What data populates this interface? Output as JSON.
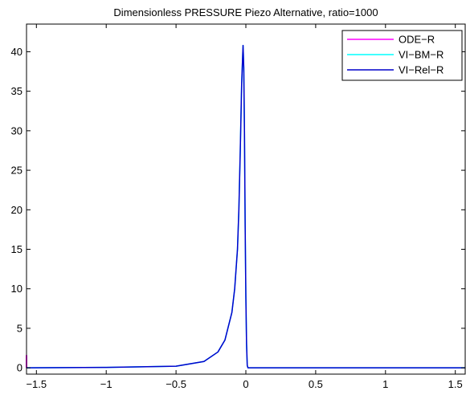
{
  "chart_data": {
    "type": "line",
    "title": "Dimensionless PRESSURE Piezo Alternative, ratio=1000",
    "xlabel": "",
    "ylabel": "",
    "xlim": [
      -1.5708,
      1.5708
    ],
    "ylim": [
      -0.8,
      43.5
    ],
    "xticks": [
      -1.5,
      -1,
      -0.5,
      0,
      0.5,
      1,
      1.5
    ],
    "xtick_labels": [
      "−1.5",
      "−1",
      "−0.5",
      "0",
      "0.5",
      "1",
      "1.5"
    ],
    "yticks": [
      0,
      5,
      10,
      15,
      20,
      25,
      30,
      35,
      40
    ],
    "ytick_labels": [
      "0",
      "5",
      "10",
      "15",
      "20",
      "25",
      "30",
      "35",
      "40"
    ],
    "grid": false,
    "legend_position": "top-right",
    "series": [
      {
        "name": "ODE−R",
        "color": "#ff00ff",
        "x": [
          -1.5708,
          -1.5708
        ],
        "y": [
          0.0,
          1.6
        ]
      },
      {
        "name": "VI−BM−R",
        "color": "#00ffff",
        "x": [
          -1.5708,
          -1.0,
          -0.5,
          -0.3,
          -0.2,
          -0.15,
          -0.1,
          -0.08,
          -0.06,
          -0.05,
          -0.04,
          -0.03,
          -0.02,
          -0.015,
          -0.01,
          -0.005,
          0.0,
          0.005,
          0.01,
          0.015,
          0.5,
          1.0,
          1.5708
        ],
        "y": [
          0.0,
          0.05,
          0.2,
          0.8,
          2.0,
          3.5,
          7.0,
          10.0,
          15.0,
          20.0,
          27.5,
          36.0,
          40.8,
          38.0,
          30.0,
          18.0,
          9.0,
          3.0,
          0.3,
          0.0,
          0.0,
          0.0,
          0.0
        ]
      },
      {
        "name": "VI−Rel−R",
        "color": "#0000cc",
        "x": [
          -1.5708,
          -1.0,
          -0.5,
          -0.3,
          -0.2,
          -0.15,
          -0.1,
          -0.08,
          -0.06,
          -0.05,
          -0.04,
          -0.03,
          -0.02,
          -0.015,
          -0.01,
          -0.005,
          0.0,
          0.005,
          0.01,
          0.015,
          0.5,
          1.0,
          1.5708
        ],
        "y": [
          0.0,
          0.05,
          0.2,
          0.8,
          2.0,
          3.5,
          7.0,
          10.0,
          15.0,
          20.0,
          27.5,
          36.0,
          40.8,
          38.0,
          30.0,
          18.0,
          9.0,
          3.0,
          0.3,
          0.0,
          0.0,
          0.0,
          0.0
        ]
      }
    ]
  }
}
